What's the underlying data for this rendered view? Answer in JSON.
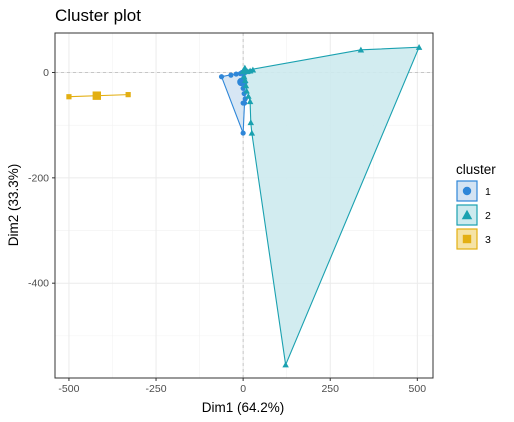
{
  "chart_data": {
    "type": "scatter",
    "title": "Cluster plot",
    "xlabel": "Dim1 (64.2%)",
    "ylabel": "Dim2 (33.3%)",
    "xlim": [
      -540,
      545
    ],
    "ylim": [
      -580,
      75
    ],
    "x_ticks": [
      -500,
      -250,
      0,
      250,
      500
    ],
    "x_tick_labels": [
      "-500",
      "-250",
      "0",
      "250",
      "500"
    ],
    "y_ticks": [
      0,
      -200,
      -400
    ],
    "y_tick_labels": [
      "0",
      "-200",
      "-400"
    ],
    "grid": true,
    "legend": {
      "title": "cluster",
      "position": "right",
      "entries": [
        {
          "label": "1",
          "shape": "circle",
          "color": "#2E86D8"
        },
        {
          "label": "2",
          "shape": "triangle",
          "color": "#1AA1B0"
        },
        {
          "label": "3",
          "shape": "square",
          "color": "#E3AF12"
        }
      ]
    },
    "series": [
      {
        "name": "1",
        "color": "#2E86D8",
        "fill": "#D3E3F3",
        "shape": "circle",
        "points": [
          {
            "x": -62,
            "y": -8
          },
          {
            "x": -35,
            "y": -5
          },
          {
            "x": -20,
            "y": -3
          },
          {
            "x": -8,
            "y": -2
          },
          {
            "x": -3,
            "y": 0
          },
          {
            "x": 0,
            "y": -2
          },
          {
            "x": 4,
            "y": -1
          },
          {
            "x": 0,
            "y": -30
          },
          {
            "x": 3,
            "y": -40
          },
          {
            "x": 6,
            "y": -50
          },
          {
            "x": 0,
            "y": -58
          },
          {
            "x": 4,
            "y": -58
          },
          {
            "x": 0,
            "y": -115
          },
          {
            "x": 2,
            "y": -10
          },
          {
            "x": 5,
            "y": -20
          }
        ],
        "hull": [
          {
            "x": -62,
            "y": -8
          },
          {
            "x": -3,
            "y": 0
          },
          {
            "x": 6,
            "y": -50
          },
          {
            "x": 4,
            "y": -58
          },
          {
            "x": 0,
            "y": -115
          }
        ],
        "centroid": {
          "x": -5,
          "y": -18
        }
      },
      {
        "name": "2",
        "color": "#1AA1B0",
        "fill": "#CDEAEE",
        "shape": "triangle",
        "points": [
          {
            "x": 505,
            "y": 48
          },
          {
            "x": 338,
            "y": 43
          },
          {
            "x": 28,
            "y": 5
          },
          {
            "x": 20,
            "y": 3
          },
          {
            "x": 12,
            "y": 2
          },
          {
            "x": 0,
            "y": 3
          },
          {
            "x": 3,
            "y": -8
          },
          {
            "x": 6,
            "y": -15
          },
          {
            "x": 8,
            "y": -25
          },
          {
            "x": 10,
            "y": -35
          },
          {
            "x": 15,
            "y": -45
          },
          {
            "x": 20,
            "y": -55
          },
          {
            "x": 22,
            "y": -95
          },
          {
            "x": 25,
            "y": -115
          },
          {
            "x": 122,
            "y": -555
          }
        ],
        "hull": [
          {
            "x": 0,
            "y": 3
          },
          {
            "x": 338,
            "y": 43
          },
          {
            "x": 505,
            "y": 48
          },
          {
            "x": 122,
            "y": -555
          },
          {
            "x": 25,
            "y": -115
          },
          {
            "x": 22,
            "y": -95
          },
          {
            "x": 20,
            "y": -55
          },
          {
            "x": 8,
            "y": -25
          }
        ],
        "centroid": {
          "x": 5,
          "y": 5
        }
      },
      {
        "name": "3",
        "color": "#E3AF12",
        "fill": "#F5E3A6",
        "shape": "square",
        "points": [
          {
            "x": -500,
            "y": -46
          },
          {
            "x": -330,
            "y": -42
          }
        ],
        "hull": [
          {
            "x": -500,
            "y": -46
          },
          {
            "x": -330,
            "y": -42
          }
        ],
        "centroid": {
          "x": -420,
          "y": -44
        }
      }
    ]
  }
}
